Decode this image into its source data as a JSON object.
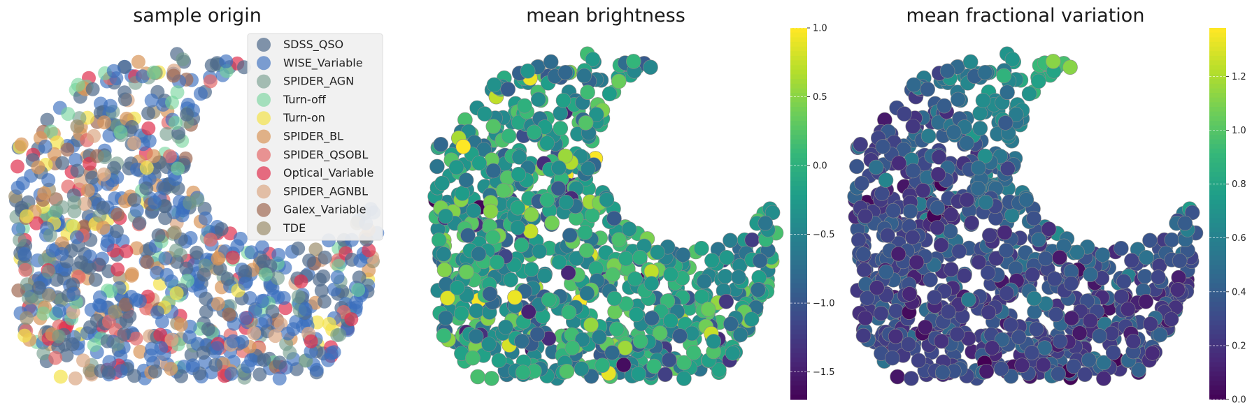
{
  "figure": {
    "background": "#ffffff"
  },
  "colors": {
    "colormap_viridis": [
      "#440154",
      "#482878",
      "#3e4989",
      "#31688e",
      "#26828e",
      "#1f9e89",
      "#35b779",
      "#6ece58",
      "#b5de2b",
      "#fde725"
    ],
    "marker_edge": "#8a8a8a",
    "legend_background": "#f0f0f0"
  },
  "chart_data": [
    {
      "type": "scatter",
      "title": "sample origin",
      "xlabel": "",
      "ylabel": "",
      "axes_visible": false,
      "grid": false,
      "legend_placement": "upper-right",
      "legend": [
        {
          "name": "SDSS_QSO",
          "color": "#4f6a8a",
          "opacity": 0.7
        },
        {
          "name": "WISE_Variable",
          "color": "#3a6fbf",
          "opacity": 0.65
        },
        {
          "name": "SPIDER_AGN",
          "color": "#6f9a88",
          "opacity": 0.6
        },
        {
          "name": "Turn-off",
          "color": "#72d39a",
          "opacity": 0.6
        },
        {
          "name": "Turn-on",
          "color": "#f3e24a",
          "opacity": 0.7
        },
        {
          "name": "SPIDER_BL",
          "color": "#d8955a",
          "opacity": 0.7
        },
        {
          "name": "SPIDER_QSOBL",
          "color": "#e46a6a",
          "opacity": 0.7
        },
        {
          "name": "Optical_Variable",
          "color": "#e0304f",
          "opacity": 0.7
        },
        {
          "name": "SPIDER_AGNBL",
          "color": "#dba884",
          "opacity": 0.7
        },
        {
          "name": "Galex_Variable",
          "color": "#a06a52",
          "opacity": 0.7
        },
        {
          "name": "TDE",
          "color": "#9c8f6c",
          "opacity": 0.7
        }
      ],
      "point_count_note": "",
      "shape": "crescent"
    },
    {
      "type": "scatter",
      "title": "mean brightness",
      "xlabel": "",
      "ylabel": "",
      "axes_visible": false,
      "grid": false,
      "colormap": "viridis",
      "colorbar": {
        "range": [
          -1.7,
          1.0
        ],
        "ticks": [
          1.0,
          0.5,
          0.0,
          -0.5,
          -1.0,
          -1.5
        ],
        "tick_labels": [
          "1.0",
          "0.5",
          "0.0",
          "−0.5",
          "−1.0",
          "−1.5"
        ]
      },
      "value_distribution": {
        "mean": -0.25,
        "sd": 0.45
      }
    },
    {
      "type": "scatter",
      "title": "mean fractional variation",
      "xlabel": "",
      "ylabel": "",
      "axes_visible": false,
      "grid": false,
      "colormap": "viridis",
      "colorbar": {
        "range": [
          0.0,
          1.38
        ],
        "ticks": [
          1.2,
          1.0,
          0.8,
          0.6,
          0.4,
          0.2,
          0.0
        ],
        "tick_labels": [
          "1.2",
          "1.0",
          "0.8",
          "0.6",
          "0.4",
          "0.2",
          "0.0"
        ]
      },
      "value_distribution": {
        "low": 0.3,
        "high": 1.3
      }
    }
  ]
}
